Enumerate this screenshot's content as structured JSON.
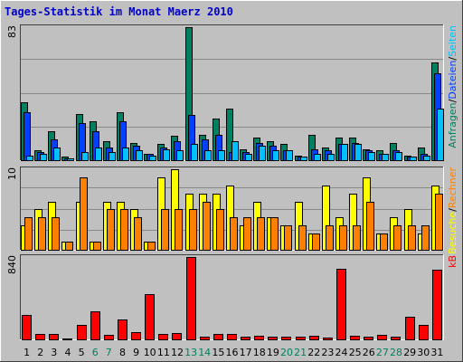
{
  "colors": {
    "title": "#0000cc",
    "frame_bg": "#c0c0c0",
    "plot_bg": "#c0c0c0",
    "grid": "#888888",
    "hits": "#008060",
    "files": "#0040ff",
    "pages": "#00c0ff",
    "visits": "#ffff00",
    "sites": "#ff8000",
    "kbytes": "#ff0000",
    "weekday_label": "#000000",
    "weekend_label": "#008060"
  },
  "chart_data": [
    {
      "type": "bar",
      "title": "Tages-Statistik im Monat Maerz 2010",
      "ymax_label": "83",
      "ylim": [
        0,
        83
      ],
      "grid": true,
      "side_label_parts": [
        "Anfragen",
        "/",
        "Dateien",
        "/",
        "Seiten"
      ],
      "categories": [
        "1",
        "2",
        "3",
        "4",
        "5",
        "6",
        "7",
        "8",
        "9",
        "10",
        "11",
        "12",
        "13",
        "14",
        "15",
        "16",
        "17",
        "18",
        "19",
        "20",
        "21",
        "22",
        "23",
        "24",
        "25",
        "26",
        "27",
        "28",
        "29",
        "30",
        "31"
      ],
      "series": [
        {
          "name": "Anfragen",
          "values": [
            36,
            6,
            18,
            2,
            29,
            24,
            12,
            30,
            11,
            4,
            10,
            15,
            83,
            16,
            26,
            32,
            7,
            14,
            12,
            10,
            3,
            16,
            8,
            14,
            14,
            7,
            6,
            11,
            3,
            8,
            61
          ]
        },
        {
          "name": "Dateien",
          "values": [
            30,
            5,
            13,
            1,
            23,
            18,
            8,
            24,
            9,
            4,
            8,
            12,
            28,
            13,
            16,
            5,
            5,
            11,
            9,
            6,
            2,
            7,
            6,
            10,
            11,
            6,
            4,
            6,
            2,
            4,
            54
          ]
        },
        {
          "name": "Seiten",
          "values": [
            3,
            4,
            8,
            1,
            5,
            8,
            5,
            8,
            6,
            3,
            7,
            6,
            10,
            6,
            6,
            12,
            4,
            9,
            6,
            6,
            2,
            4,
            4,
            10,
            10,
            5,
            4,
            5,
            2,
            3,
            32
          ]
        }
      ]
    },
    {
      "type": "bar",
      "ymax_label": "10",
      "ylim": [
        0,
        10
      ],
      "grid": true,
      "side_label_parts": [
        "Besuche",
        "/",
        "Rechner"
      ],
      "categories": [
        "1",
        "2",
        "3",
        "4",
        "5",
        "6",
        "7",
        "8",
        "9",
        "10",
        "11",
        "12",
        "13",
        "14",
        "15",
        "16",
        "17",
        "18",
        "19",
        "20",
        "21",
        "22",
        "23",
        "24",
        "25",
        "26",
        "27",
        "28",
        "29",
        "30",
        "31"
      ],
      "series": [
        {
          "name": "Besuche",
          "values": [
            3,
            5,
            6,
            1,
            6,
            1,
            6,
            6,
            5,
            1,
            9,
            10,
            7,
            7,
            7,
            8,
            3,
            6,
            4,
            3,
            6,
            2,
            8,
            4,
            7,
            9,
            2,
            4,
            5,
            2,
            8
          ]
        },
        {
          "name": "Rechner",
          "values": [
            4,
            4,
            4,
            1,
            9,
            1,
            5,
            5,
            4,
            1,
            5,
            5,
            5,
            6,
            5,
            4,
            4,
            4,
            4,
            3,
            3,
            2,
            3,
            3,
            3,
            6,
            2,
            3,
            3,
            3,
            7
          ]
        }
      ]
    },
    {
      "type": "bar",
      "ymax_label": "840",
      "ylim": [
        0,
        840
      ],
      "grid": false,
      "side_label_parts": [
        "kB"
      ],
      "categories": [
        "1",
        "2",
        "3",
        "4",
        "5",
        "6",
        "7",
        "8",
        "9",
        "10",
        "11",
        "12",
        "13",
        "14",
        "15",
        "16",
        "17",
        "18",
        "19",
        "20",
        "21",
        "22",
        "23",
        "24",
        "25",
        "26",
        "27",
        "28",
        "29",
        "30",
        "31"
      ],
      "series": [
        {
          "name": "kB",
          "values": [
            245,
            55,
            55,
            10,
            150,
            285,
            45,
            200,
            70,
            460,
            55,
            65,
            840,
            30,
            55,
            55,
            30,
            35,
            30,
            25,
            25,
            35,
            15,
            720,
            35,
            30,
            45,
            30,
            230,
            145,
            710
          ]
        }
      ]
    }
  ],
  "weekend_days": [
    6,
    7,
    13,
    14,
    20,
    21,
    27,
    28
  ]
}
